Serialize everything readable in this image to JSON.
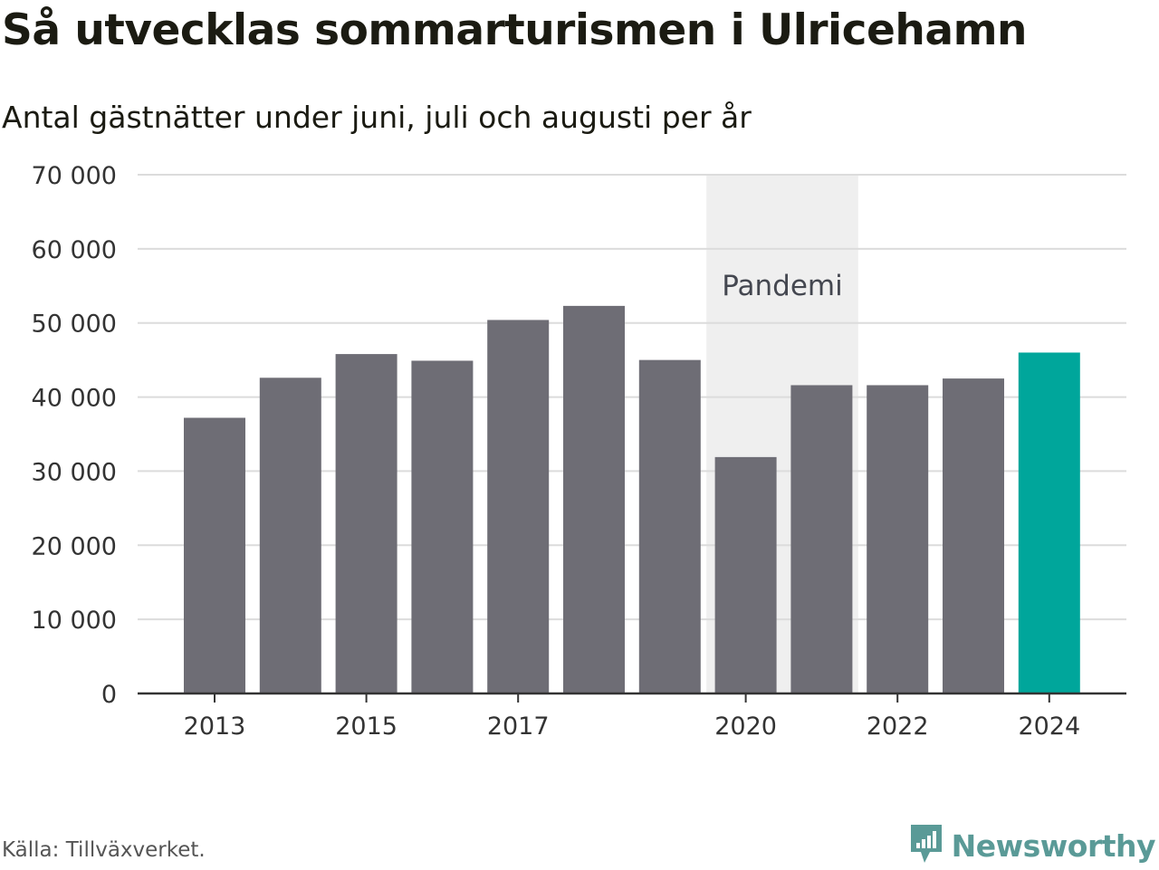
{
  "title": "Så utvecklas sommarturismen i Ulricehamn",
  "subtitle": "Antal gästnätter under juni, juli och augusti per år",
  "source": "Källa: Tillväxverket.",
  "brand": {
    "name": "Newsworthy",
    "icon": "newsworthy-logo-icon"
  },
  "colors": {
    "bar": "#6e6d75",
    "highlight": "#00a69b",
    "band": "#efefef",
    "grid": "#dcdcdc",
    "axis": "#333333"
  },
  "chart_data": {
    "type": "bar",
    "categories": [
      "2013",
      "2014",
      "2015",
      "2016",
      "2017",
      "2018",
      "2019",
      "2020",
      "2021",
      "2022",
      "2023",
      "2024"
    ],
    "x_tick_labels": [
      "2013",
      "2015",
      "2017",
      "2020",
      "2022",
      "2024"
    ],
    "values": [
      37200,
      42600,
      45800,
      44900,
      50400,
      52300,
      45000,
      31900,
      41600,
      41600,
      42500,
      46000
    ],
    "highlight_category": "2024",
    "ylim": [
      0,
      70000
    ],
    "y_ticks": [
      0,
      10000,
      20000,
      30000,
      40000,
      50000,
      60000,
      70000
    ],
    "y_tick_labels": [
      "0",
      "10 000",
      "20 000",
      "30 000",
      "40 000",
      "50 000",
      "60 000",
      "70 000"
    ],
    "xlabel": "",
    "ylabel": "",
    "grid": true,
    "legend": "none",
    "annotations": [
      {
        "text": "Pandemi",
        "type": "shaded-band",
        "x_start": "2020",
        "x_end": "2021"
      }
    ]
  }
}
